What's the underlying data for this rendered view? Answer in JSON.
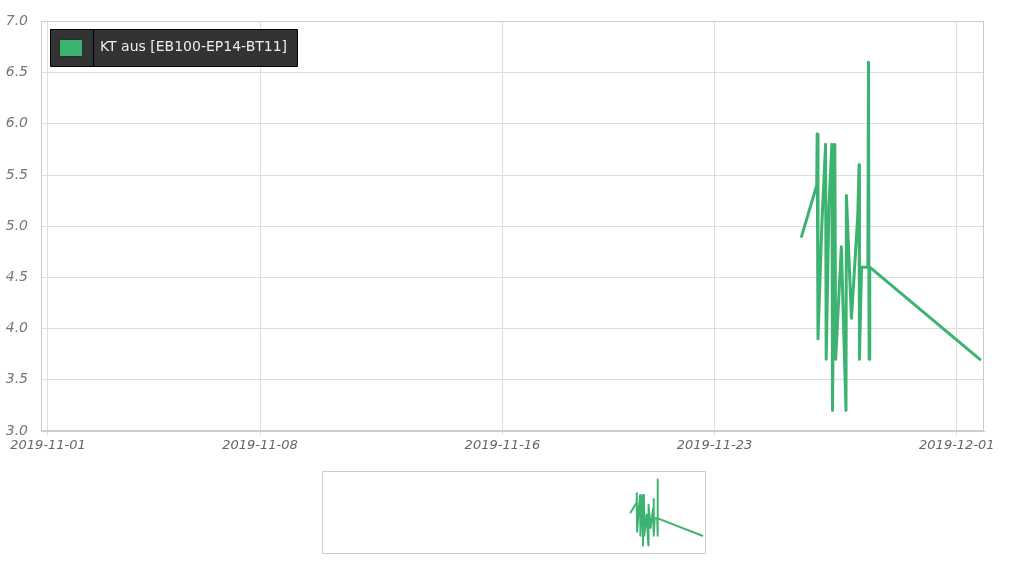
{
  "chart_data": {
    "type": "line",
    "x": [
      "2019-11-25T21:00",
      "2019-11-26T09:00",
      "2019-11-26T09:20",
      "2019-11-26T10:00",
      "2019-11-26T13:00",
      "2019-11-26T16:00",
      "2019-11-26T16:30",
      "2019-11-26T18:40",
      "2019-11-26T21:00",
      "2019-11-26T21:30",
      "2019-11-26T23:20",
      "2019-11-27T00:00",
      "2019-11-27T04:30",
      "2019-11-27T08:10",
      "2019-11-27T08:30",
      "2019-11-27T12:30",
      "2019-11-27T17:30",
      "2019-11-27T18:30",
      "2019-11-27T18:50",
      "2019-11-27T20:30",
      "2019-11-28T01:30",
      "2019-11-28T02:00",
      "2019-11-28T02:30",
      "2019-11-28T03:00",
      "2019-12-01T18:15"
    ],
    "series": [
      {
        "name": "KT aus [EB100-EP14-BT11]",
        "color": "#3cb371",
        "values": [
          4.9,
          5.4,
          5.9,
          3.9,
          5.0,
          5.8,
          3.7,
          5.2,
          5.8,
          3.2,
          5.8,
          3.7,
          4.8,
          3.2,
          5.3,
          4.1,
          5.1,
          5.6,
          3.7,
          4.6,
          4.6,
          6.6,
          3.7,
          4.6,
          3.7
        ]
      }
    ],
    "xlim": [
      "2019-10-31T18:30",
      "2019-12-01T21:30"
    ],
    "xticks": [
      "2019-11-01",
      "2019-11-08",
      "2019-11-16",
      "2019-11-23",
      "2019-12-01"
    ],
    "ylim": [
      3.0,
      7.0
    ],
    "yticks": [
      {
        "value": 3.0,
        "label": "3.0"
      },
      3.5,
      {
        "value": 4.0,
        "label": "4.0"
      },
      4.5,
      {
        "value": 5.0,
        "label": "5.0"
      },
      5.5,
      {
        "value": 6.0,
        "label": "6.0"
      },
      6.5,
      {
        "value": 7.0,
        "label": "7.0"
      }
    ],
    "grid": true,
    "legend": "top left"
  }
}
